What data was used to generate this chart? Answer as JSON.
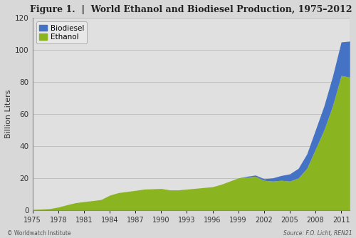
{
  "title": "Figure 1.  |  World Ethanol and Biodiesel Production, 1975–2012",
  "ylabel": "Billion Liters",
  "xlabel": "",
  "background_color": "#d8d8d8",
  "plot_bg_color": "#e0e0e0",
  "ethanol_color": "#8ab520",
  "biodiesel_color": "#4472c4",
  "ylim": [
    0,
    120
  ],
  "yticks": [
    0,
    20,
    40,
    60,
    80,
    100,
    120
  ],
  "xtick_labels": [
    "1975",
    "1978",
    "1981",
    "1984",
    "1987",
    "1990",
    "1993",
    "1996",
    "1999",
    "2002",
    "2005",
    "2008",
    "2011"
  ],
  "footer_left": "© Worldwatch Institute",
  "footer_right": "Source: F.O. Licht, REN21",
  "years": [
    1975,
    1976,
    1977,
    1978,
    1979,
    1980,
    1981,
    1982,
    1983,
    1984,
    1985,
    1986,
    1987,
    1988,
    1989,
    1990,
    1991,
    1992,
    1993,
    1994,
    1995,
    1996,
    1997,
    1998,
    1999,
    2000,
    2001,
    2002,
    2003,
    2004,
    2005,
    2006,
    2007,
    2008,
    2009,
    2010,
    2011,
    2012
  ],
  "ethanol": [
    0.3,
    0.5,
    0.8,
    1.8,
    3.2,
    4.5,
    5.2,
    5.8,
    6.5,
    9.2,
    10.8,
    11.5,
    12.2,
    13.0,
    13.2,
    13.4,
    12.5,
    12.5,
    13.0,
    13.5,
    14.0,
    14.5,
    16.0,
    18.0,
    20.0,
    20.5,
    21.0,
    18.5,
    18.0,
    18.5,
    18.0,
    20.0,
    26.0,
    38.0,
    50.0,
    65.0,
    84.0,
    83.0
  ],
  "biodiesel": [
    0.0,
    0.0,
    0.0,
    0.0,
    0.0,
    0.0,
    0.0,
    0.0,
    0.0,
    0.0,
    0.0,
    0.0,
    0.0,
    0.0,
    0.0,
    0.0,
    0.0,
    0.0,
    0.0,
    0.0,
    0.0,
    0.0,
    0.0,
    0.0,
    0.0,
    0.5,
    0.8,
    1.0,
    2.0,
    3.0,
    4.5,
    6.0,
    9.0,
    12.0,
    15.0,
    18.5,
    21.0,
    22.5
  ],
  "legend_biodiesel": "Biodiesel",
  "legend_ethanol": "Ethanol"
}
